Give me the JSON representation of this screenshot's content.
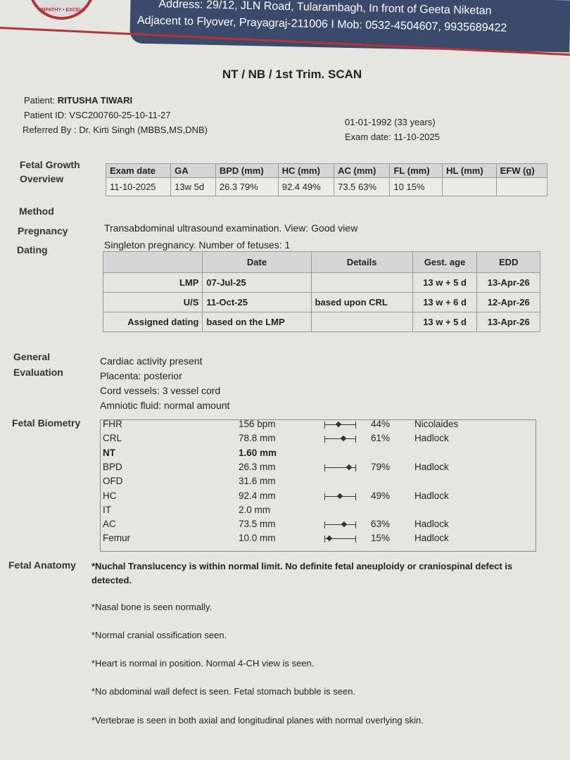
{
  "header": {
    "logo_text": "EMPATHY • EXCELL",
    "address_line1": "Address: 29/12, JLN Road, Tularambagh, In front of Geeta Niketan",
    "address_line2": "Adjacent to Flyover, Prayagraj-211006 I Mob: 0532-4504607, 9935689422"
  },
  "title": "NT / NB / 1st Trim. SCAN",
  "patient": {
    "name_label": "Patient:",
    "name": "RITUSHA TIWARI",
    "id": "Patient ID: VSC200760-25-10-11-27",
    "referred": "Referred By : Dr. Kirti Singh (MBBS,MS,DNB)",
    "dob": "01-01-1992 (33 years)",
    "exam_date": "Exam date: 11-10-2025"
  },
  "sections": {
    "growth": "Fetal Growth Overview",
    "method": "Method",
    "pregnancy": "Pregnancy",
    "dating": "Dating",
    "general": "General Evaluation",
    "biometry": "Fetal Biometry",
    "anatomy": "Fetal Anatomy"
  },
  "growth_table": {
    "headers": [
      "Exam date",
      "GA",
      "BPD (mm)",
      "HC (mm)",
      "AC (mm)",
      "FL (mm)",
      "HL (mm)",
      "EFW (g)"
    ],
    "row": [
      "11-10-2025",
      "13w 5d",
      "26.3     79%",
      "92.4   49%",
      "73.5   63%",
      "10     15%",
      "",
      ""
    ]
  },
  "method_text": "Transabdominal ultrasound examination. View: Good view",
  "pregnancy_text": "Singleton pregnancy. Number of fetuses: 1",
  "dating_table": {
    "headers": [
      "",
      "Date",
      "Details",
      "Gest. age",
      "EDD"
    ],
    "rows": [
      [
        "LMP",
        "07-Jul-25",
        "",
        "13 w + 5 d",
        "13-Apr-26"
      ],
      [
        "U/S",
        "11-Oct-25",
        "based upon CRL",
        "13 w + 6 d",
        "12-Apr-26"
      ],
      [
        "Assigned dating",
        "based on the LMP",
        "",
        "13 w + 5 d",
        "13-Apr-26"
      ]
    ]
  },
  "general": [
    "Cardiac activity present",
    "Placenta: posterior",
    "Cord vessels: 3 vessel cord",
    "Amniotic fluid: normal amount"
  ],
  "biometry": [
    {
      "name": "FHR",
      "value": "156 bpm",
      "pct": "44%",
      "pct_value": 44,
      "ref": "Nicolaides"
    },
    {
      "name": "CRL",
      "value": "78.8 mm",
      "pct": "61%",
      "pct_value": 61,
      "ref": "Hadlock"
    },
    {
      "name": "NT",
      "value": "1.60 mm",
      "pct": "",
      "ref": ""
    },
    {
      "name": "BPD",
      "value": "26.3 mm",
      "pct": "79%",
      "pct_value": 79,
      "ref": "Hadlock"
    },
    {
      "name": "OFD",
      "value": "31.6 mm",
      "pct": "",
      "ref": ""
    },
    {
      "name": "HC",
      "value": "92.4 mm",
      "pct": "49%",
      "pct_value": 49,
      "ref": "Hadlock"
    },
    {
      "name": "IT",
      "value": "2.0 mm",
      "pct": "",
      "ref": ""
    },
    {
      "name": "AC",
      "value": "73.5 mm",
      "pct": "63%",
      "pct_value": 63,
      "ref": "Hadlock"
    },
    {
      "name": "Femur",
      "value": "10.0 mm",
      "pct": "15%",
      "pct_value": 15,
      "ref": "Hadlock"
    }
  ],
  "anatomy": [
    "*Nuchal Translucency is within normal limit. No definite fetal aneuploidy or craniospinal defect is detected.",
    "*Nasal bone is seen normally.",
    "*Normal cranial ossification seen.",
    "*Heart is normal in position. Normal 4-CH view is seen.",
    "*No abdominal wall defect is seen. Fetal stomach bubble is seen.",
    "*Vertebrae is seen in both axial and longitudinal planes with normal overlying skin."
  ]
}
